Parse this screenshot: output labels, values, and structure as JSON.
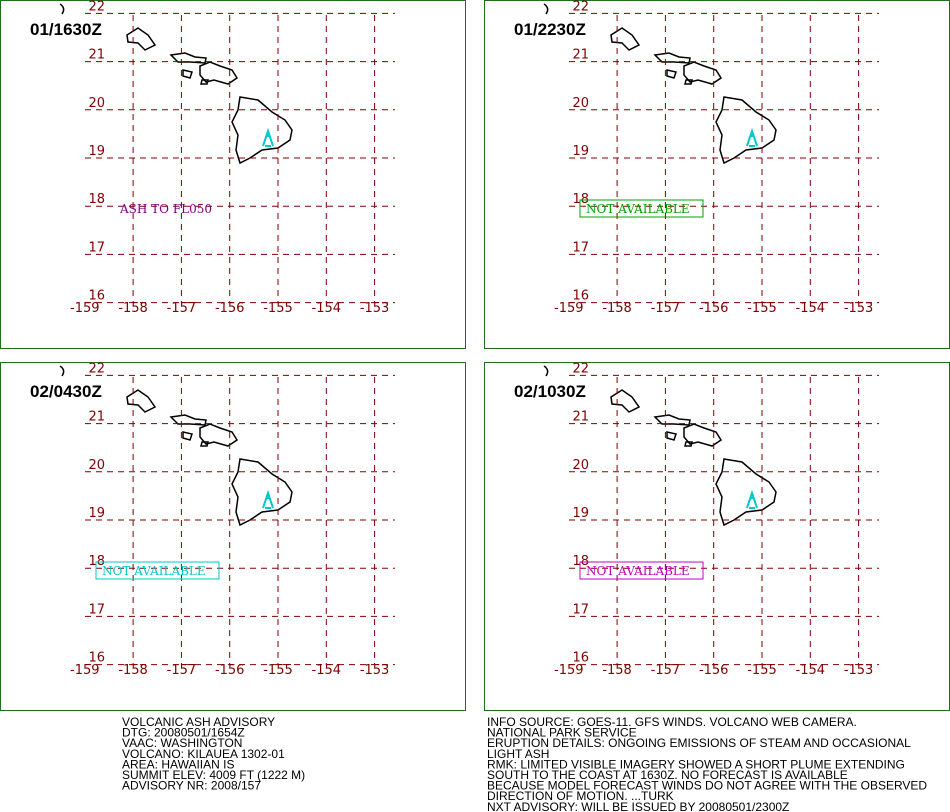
{
  "panels": [
    {
      "time": "01/1630Z",
      "annotation": "ASH TO FL050"
    },
    {
      "time": "01/2230Z",
      "annotation": "NOT AVAILABLE"
    },
    {
      "time": "02/0430Z",
      "annotation": "NOT AVAILABLE"
    },
    {
      "time": "02/1030Z",
      "annotation": "NOT AVAILABLE"
    }
  ],
  "lat_labels": [
    22,
    21,
    20,
    19,
    18,
    17,
    16
  ],
  "lon_labels": [
    -159,
    -158,
    -157,
    -156,
    -155,
    -154,
    -153
  ],
  "advisory_left": [
    "VOLCANIC ASH ADVISORY",
    "DTG: 20080501/1654Z",
    "VAAC: WASHINGTON",
    "VOLCANO: KILAUEA 1302-01",
    "AREA: HAWAIIAN IS",
    "SUMMIT ELEV: 4009 FT (1222 M)",
    "ADVISORY NR: 2008/157"
  ],
  "advisory_right": [
    "INFO SOURCE: GOES-11. GFS WINDS. VOLCANO WEB CAMERA.",
    "NATIONAL PARK SERVICE",
    "ERUPTION DETAILS: ONGOING EMISSIONS OF STEAM AND OCCASIONAL",
    "LIGHT ASH",
    "RMK: LIMITED VISIBLE IMAGERY SHOWED A SHORT PLUME EXTENDING",
    "SOUTH TO THE COAST AT 1630Z. NO FORECAST IS AVAILABLE",
    "BECAUSE MODEL FORECAST WINDS DO NOT AGREE WITH THE OBSERVED",
    "DIRECTION OF MOTION. ...TURK",
    "NXT ADVISORY: WILL BE ISSUED BY 20080501/2300Z"
  ]
}
